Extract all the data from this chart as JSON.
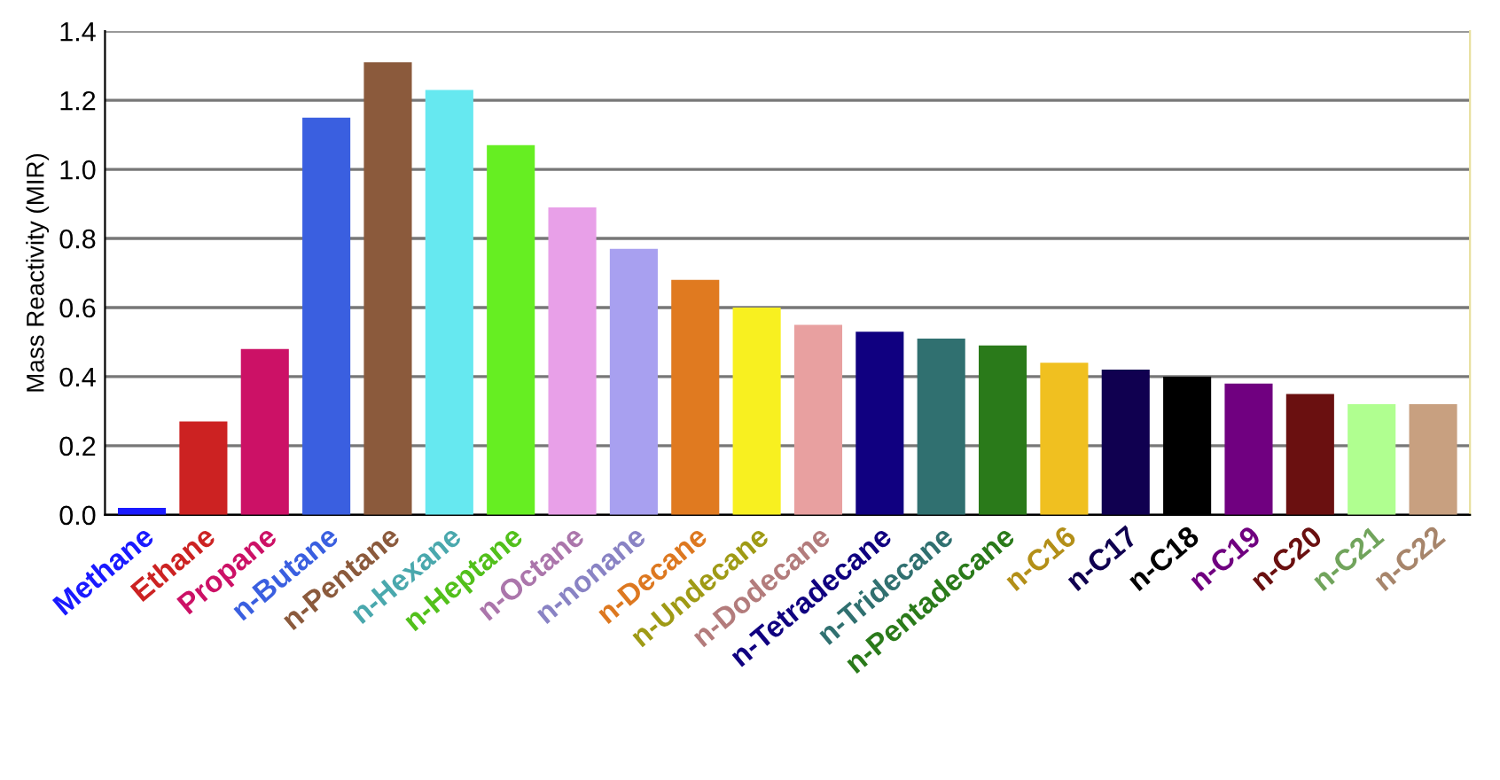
{
  "chart_data": {
    "type": "bar",
    "ylabel": "Mass Reactivity (MIR)",
    "categories": [
      "Methane",
      "Ethane",
      "Propane",
      "n-Butane",
      "n-Pentane",
      "n-Hexane",
      "n-Heptane",
      "n-Octane",
      "n-nonane",
      "n-Decane",
      "n-Undecane",
      "n-Dodecane",
      "n-Tetradecane",
      "n-Tridecane",
      "n-Pentadecane",
      "n-C16",
      "n-C17",
      "n-C18",
      "n-C19",
      "n-C20",
      "n-C21",
      "n-C22"
    ],
    "values": [
      0.02,
      0.27,
      0.48,
      1.15,
      1.31,
      1.23,
      1.07,
      0.89,
      0.77,
      0.68,
      0.6,
      0.55,
      0.53,
      0.51,
      0.49,
      0.44,
      0.42,
      0.4,
      0.38,
      0.35,
      0.32,
      0.32
    ],
    "colors": [
      "#1a1aff",
      "#cc2222",
      "#cc1166",
      "#3a5fe0",
      "#8b5a3c",
      "#66e8f0",
      "#66ee22",
      "#e8a0e8",
      "#a8a0f0",
      "#e07a20",
      "#f8f020",
      "#e8a0a0",
      "#100080",
      "#307070",
      "#2a7a1a",
      "#f0c020",
      "#100050",
      "#000000",
      "#700080",
      "#6a1010",
      "#b0ff90",
      "#c8a080"
    ],
    "ylim": [
      0,
      1.4
    ],
    "yticks": [
      {
        "value": 0,
        "label": "0.0"
      },
      {
        "value": 0.2,
        "label": "0.2"
      },
      {
        "value": 0.4,
        "label": "0.4"
      },
      {
        "value": 0.6,
        "label": "0.6"
      },
      {
        "value": 0.8,
        "label": "0.8"
      },
      {
        "value": 1.0,
        "label": "1.0"
      },
      {
        "value": 1.2,
        "label": "1.2"
      },
      {
        "value": 1.4,
        "label": "1.4"
      }
    ],
    "grid": "y",
    "legend": false
  }
}
